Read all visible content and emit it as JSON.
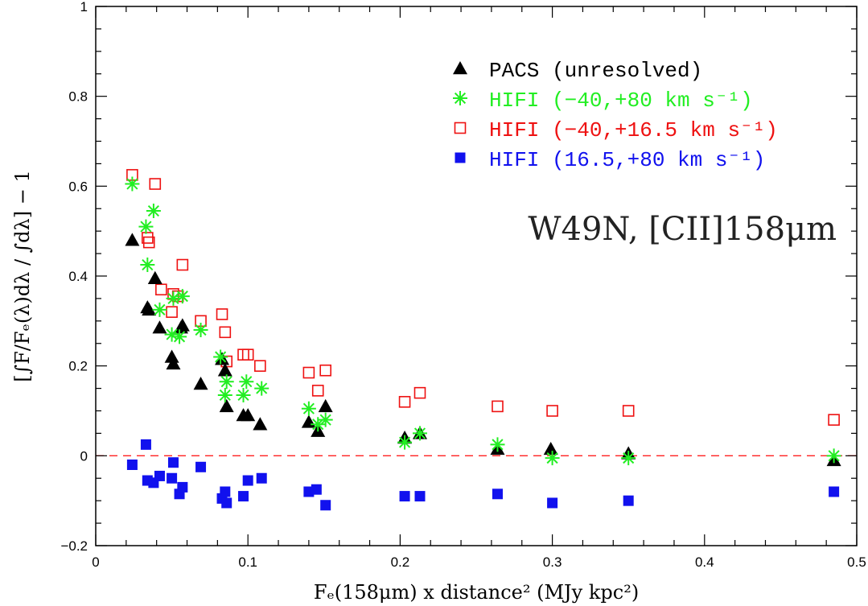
{
  "chart_data": {
    "type": "scatter",
    "title": "",
    "annotation": "W49N, [CII]158μm",
    "xlabel": "Fₑ(158μm) x distance² (MJy kpc²)",
    "ylabel": "[∫F/Fₑ(λ)dλ / ∫dλ] − 1",
    "xlim": [
      0,
      0.5
    ],
    "ylim": [
      -0.2,
      1.0
    ],
    "xticks": [
      0,
      0.1,
      0.2,
      0.3,
      0.4,
      0.5
    ],
    "xtick_labels": [
      "0",
      "0.1",
      "0.2",
      "0.3",
      "0.4",
      "0.5"
    ],
    "yticks": [
      -0.2,
      0,
      0.2,
      0.4,
      0.6,
      0.8,
      1.0
    ],
    "ytick_labels": [
      "−0.2",
      "0",
      "0.2",
      "0.4",
      "0.6",
      "0.8",
      "1"
    ],
    "reference_line": {
      "y": 0,
      "style": "dashed",
      "color": "#ff2020"
    },
    "legend_position": "top-right",
    "series": [
      {
        "name": "PACS (unresolved)",
        "marker": "triangle",
        "color": "#000000",
        "points": [
          [
            0.024,
            0.48
          ],
          [
            0.034,
            0.33
          ],
          [
            0.035,
            0.325
          ],
          [
            0.039,
            0.395
          ],
          [
            0.042,
            0.285
          ],
          [
            0.05,
            0.22
          ],
          [
            0.051,
            0.205
          ],
          [
            0.056,
            0.285
          ],
          [
            0.057,
            0.29
          ],
          [
            0.069,
            0.16
          ],
          [
            0.083,
            0.215
          ],
          [
            0.085,
            0.19
          ],
          [
            0.086,
            0.11
          ],
          [
            0.097,
            0.09
          ],
          [
            0.1,
            0.09
          ],
          [
            0.108,
            0.07
          ],
          [
            0.14,
            0.075
          ],
          [
            0.146,
            0.055
          ],
          [
            0.151,
            0.11
          ],
          [
            0.203,
            0.04
          ],
          [
            0.213,
            0.05
          ],
          [
            0.264,
            0.015
          ],
          [
            0.299,
            0.015
          ],
          [
            0.35,
            0.005
          ],
          [
            0.485,
            -0.01
          ]
        ]
      },
      {
        "name": "HIFI (−40,+80 km s⁻¹)",
        "marker": "asterisk",
        "color": "#22ee22",
        "points": [
          [
            0.024,
            0.605
          ],
          [
            0.033,
            0.51
          ],
          [
            0.034,
            0.425
          ],
          [
            0.038,
            0.545
          ],
          [
            0.042,
            0.325
          ],
          [
            0.05,
            0.27
          ],
          [
            0.051,
            0.35
          ],
          [
            0.055,
            0.265
          ],
          [
            0.057,
            0.355
          ],
          [
            0.069,
            0.28
          ],
          [
            0.082,
            0.22
          ],
          [
            0.085,
            0.135
          ],
          [
            0.086,
            0.165
          ],
          [
            0.097,
            0.135
          ],
          [
            0.099,
            0.165
          ],
          [
            0.109,
            0.15
          ],
          [
            0.14,
            0.105
          ],
          [
            0.146,
            0.07
          ],
          [
            0.151,
            0.08
          ],
          [
            0.203,
            0.03
          ],
          [
            0.213,
            0.05
          ],
          [
            0.264,
            0.025
          ],
          [
            0.3,
            -0.005
          ],
          [
            0.35,
            -0.005
          ],
          [
            0.485,
            0.0
          ]
        ]
      },
      {
        "name": "HIFI (−40,+16.5 km s⁻¹)",
        "marker": "open-square",
        "color": "#ee1111",
        "points": [
          [
            0.024,
            0.625
          ],
          [
            0.034,
            0.485
          ],
          [
            0.035,
            0.475
          ],
          [
            0.039,
            0.605
          ],
          [
            0.043,
            0.37
          ],
          [
            0.05,
            0.32
          ],
          [
            0.051,
            0.36
          ],
          [
            0.054,
            0.355
          ],
          [
            0.057,
            0.425
          ],
          [
            0.069,
            0.3
          ],
          [
            0.083,
            0.315
          ],
          [
            0.085,
            0.275
          ],
          [
            0.086,
            0.21
          ],
          [
            0.097,
            0.225
          ],
          [
            0.1,
            0.225
          ],
          [
            0.108,
            0.2
          ],
          [
            0.14,
            0.185
          ],
          [
            0.146,
            0.145
          ],
          [
            0.151,
            0.19
          ],
          [
            0.203,
            0.12
          ],
          [
            0.213,
            0.14
          ],
          [
            0.264,
            0.11
          ],
          [
            0.3,
            0.1
          ],
          [
            0.35,
            0.1
          ],
          [
            0.485,
            0.08
          ]
        ]
      },
      {
        "name": "HIFI (16.5,+80 km s⁻¹)",
        "marker": "filled-square",
        "color": "#1111ee",
        "points": [
          [
            0.024,
            -0.02
          ],
          [
            0.033,
            0.025
          ],
          [
            0.034,
            -0.055
          ],
          [
            0.038,
            -0.06
          ],
          [
            0.042,
            -0.045
          ],
          [
            0.05,
            -0.05
          ],
          [
            0.051,
            -0.015
          ],
          [
            0.055,
            -0.085
          ],
          [
            0.057,
            -0.07
          ],
          [
            0.069,
            -0.025
          ],
          [
            0.083,
            -0.095
          ],
          [
            0.085,
            -0.08
          ],
          [
            0.086,
            -0.105
          ],
          [
            0.097,
            -0.09
          ],
          [
            0.1,
            -0.055
          ],
          [
            0.109,
            -0.05
          ],
          [
            0.14,
            -0.08
          ],
          [
            0.145,
            -0.075
          ],
          [
            0.151,
            -0.11
          ],
          [
            0.203,
            -0.09
          ],
          [
            0.213,
            -0.09
          ],
          [
            0.264,
            -0.085
          ],
          [
            0.3,
            -0.105
          ],
          [
            0.35,
            -0.1
          ],
          [
            0.485,
            -0.08
          ]
        ]
      }
    ]
  }
}
